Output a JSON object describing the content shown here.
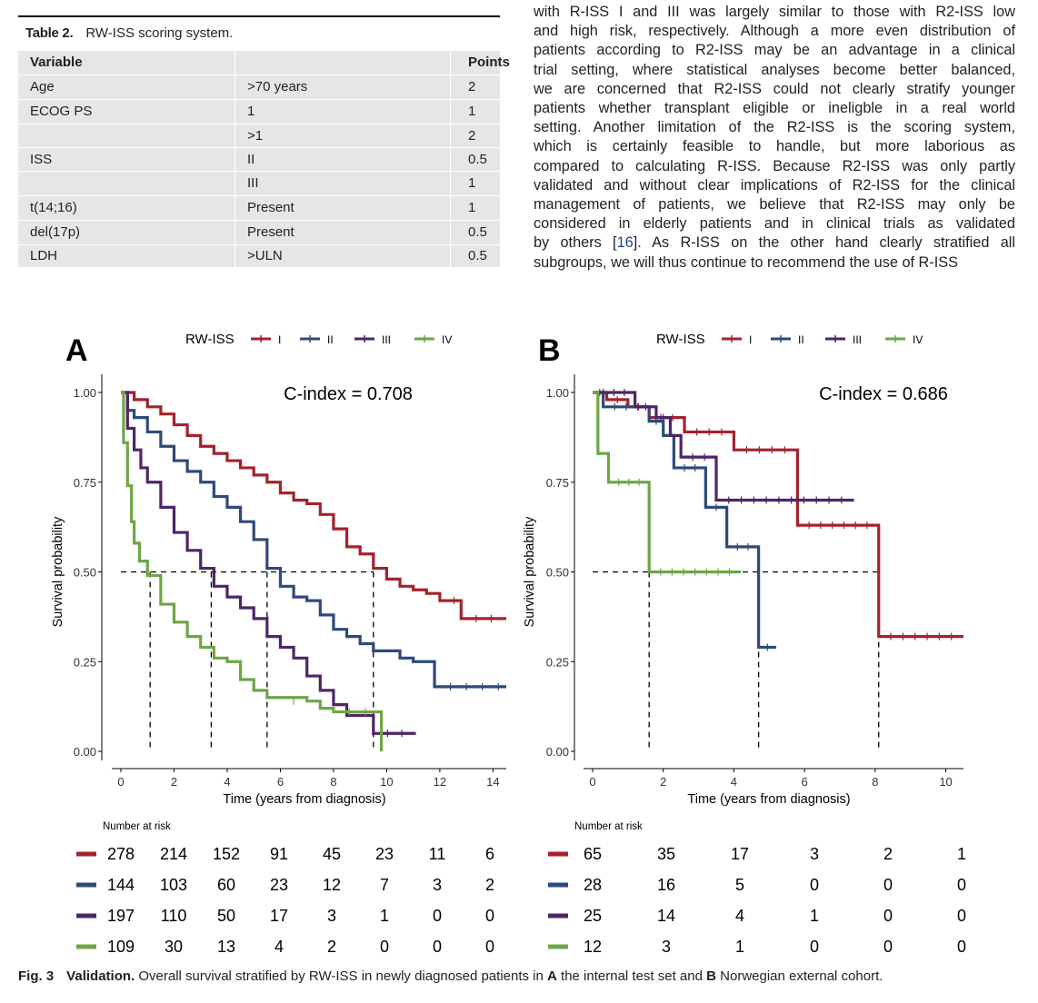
{
  "table": {
    "label": "Table 2.",
    "title": "RW-ISS scoring system.",
    "headers": [
      "Variable",
      "",
      "Points"
    ],
    "rows": [
      [
        "Age",
        ">70 years",
        "2"
      ],
      [
        "ECOG PS",
        "1",
        "1"
      ],
      [
        "",
        ">1",
        "2"
      ],
      [
        "ISS",
        "II",
        "0.5"
      ],
      [
        "",
        "III",
        "1"
      ],
      [
        "t(14;16)",
        "Present",
        "1"
      ],
      [
        "del(17p)",
        "Present",
        "0.5"
      ],
      [
        "LDH",
        ">ULN",
        "0.5"
      ]
    ]
  },
  "body_text": {
    "lines": [
      "with R-ISS I and III was largely similar to those with R2-ISS low",
      "and high risk, respectively. Although a more even distribution of",
      "patients according to R2-ISS may be an advantage in a clinical",
      "trial setting, where statistical analyses become better balanced,",
      "we are concerned that R2-ISS could not clearly stratify younger",
      "patients whether transplant eligible or ineligble in a real world",
      "setting. Another limitation of the R2-ISS is the scoring system,",
      "which is certainly feasible to handle, but more laborious as",
      "compared to calculating R-ISS. Because R2-ISS was only partly",
      "validated and without clear implications of R2-ISS for the clinical",
      "management of patients, we believe that R2-ISS may only be",
      "considered in elderly patients and in clinical trials as validated",
      "by others [16]. As R-ISS on the other hand clearly stratified all",
      "subgroups, we will thus continue to recommend the use of R-ISS"
    ],
    "ref_number": "16"
  },
  "colors": {
    "I": "#a3222e",
    "II": "#2e4a7a",
    "III": "#4e2566",
    "IV": "#6ea545"
  },
  "chart_data": [
    {
      "type": "line",
      "panel_label": "A",
      "annotation": "C-index = 0.708",
      "legend_title": "RW-ISS",
      "xlabel": "Time (years from diagnosis)",
      "ylabel": "Survival probability",
      "xlim": [
        0,
        14.5
      ],
      "ylim": [
        0,
        1
      ],
      "xticks": [
        0,
        2,
        4,
        6,
        8,
        10,
        12,
        14
      ],
      "yticks": [
        0,
        0.25,
        0.5,
        0.75,
        1
      ],
      "ytick_labels": [
        "0.00",
        "0.25",
        "0.50",
        "0.75",
        "1.00"
      ],
      "medians": [
        1.1,
        3.4,
        5.5,
        9.5
      ],
      "series": [
        {
          "name": "I",
          "points": [
            [
              0,
              1
            ],
            [
              0.5,
              0.98
            ],
            [
              1,
              0.96
            ],
            [
              1.5,
              0.94
            ],
            [
              2,
              0.91
            ],
            [
              2.5,
              0.88
            ],
            [
              3,
              0.85
            ],
            [
              3.5,
              0.83
            ],
            [
              4,
              0.81
            ],
            [
              4.5,
              0.79
            ],
            [
              5,
              0.77
            ],
            [
              5.5,
              0.75
            ],
            [
              6,
              0.72
            ],
            [
              6.5,
              0.7
            ],
            [
              7,
              0.69
            ],
            [
              7.5,
              0.66
            ],
            [
              8,
              0.62
            ],
            [
              8.5,
              0.57
            ],
            [
              9,
              0.55
            ],
            [
              9.5,
              0.51
            ],
            [
              10,
              0.48
            ],
            [
              10.5,
              0.46
            ],
            [
              11,
              0.45
            ],
            [
              11.5,
              0.44
            ],
            [
              12,
              0.42
            ],
            [
              12.8,
              0.42
            ],
            [
              12.8,
              0.37
            ],
            [
              14.5,
              0.37
            ]
          ]
        },
        {
          "name": "II",
          "points": [
            [
              0,
              1
            ],
            [
              0.25,
              0.95
            ],
            [
              0.5,
              0.93
            ],
            [
              1,
              0.89
            ],
            [
              1.5,
              0.85
            ],
            [
              2,
              0.81
            ],
            [
              2.5,
              0.78
            ],
            [
              3,
              0.75
            ],
            [
              3.5,
              0.71
            ],
            [
              4,
              0.68
            ],
            [
              4.5,
              0.64
            ],
            [
              5,
              0.59
            ],
            [
              5.5,
              0.51
            ],
            [
              6,
              0.46
            ],
            [
              6.5,
              0.43
            ],
            [
              7,
              0.42
            ],
            [
              7.5,
              0.38
            ],
            [
              8,
              0.34
            ],
            [
              8.5,
              0.32
            ],
            [
              9,
              0.3
            ],
            [
              9.5,
              0.28
            ],
            [
              10,
              0.28
            ],
            [
              10.5,
              0.26
            ],
            [
              11,
              0.25
            ],
            [
              11.5,
              0.25
            ],
            [
              11.8,
              0.22
            ],
            [
              11.8,
              0.18
            ],
            [
              14.5,
              0.18
            ]
          ]
        },
        {
          "name": "III",
          "points": [
            [
              0,
              1
            ],
            [
              0.25,
              0.9
            ],
            [
              0.5,
              0.84
            ],
            [
              0.75,
              0.79
            ],
            [
              1,
              0.75
            ],
            [
              1.5,
              0.68
            ],
            [
              2,
              0.61
            ],
            [
              2.5,
              0.56
            ],
            [
              3,
              0.51
            ],
            [
              3.5,
              0.46
            ],
            [
              4,
              0.43
            ],
            [
              4.5,
              0.4
            ],
            [
              5,
              0.37
            ],
            [
              5.5,
              0.32
            ],
            [
              6,
              0.29
            ],
            [
              6.5,
              0.26
            ],
            [
              7,
              0.21
            ],
            [
              7.5,
              0.17
            ],
            [
              8,
              0.13
            ],
            [
              8.5,
              0.1
            ],
            [
              9,
              0.1
            ],
            [
              9.5,
              0.05
            ],
            [
              11.1,
              0.05
            ]
          ]
        },
        {
          "name": "IV",
          "points": [
            [
              0,
              1
            ],
            [
              0.1,
              0.86
            ],
            [
              0.25,
              0.74
            ],
            [
              0.4,
              0.64
            ],
            [
              0.5,
              0.58
            ],
            [
              0.7,
              0.53
            ],
            [
              1,
              0.49
            ],
            [
              1.5,
              0.41
            ],
            [
              2,
              0.36
            ],
            [
              2.5,
              0.32
            ],
            [
              3,
              0.29
            ],
            [
              3.5,
              0.26
            ],
            [
              4,
              0.25
            ],
            [
              4.5,
              0.2
            ],
            [
              5,
              0.17
            ],
            [
              5.5,
              0.15
            ],
            [
              6,
              0.15
            ],
            [
              7,
              0.14
            ],
            [
              7.5,
              0.12
            ],
            [
              8,
              0.11
            ],
            [
              9.5,
              0.11
            ],
            [
              9.8,
              0.0
            ]
          ]
        }
      ],
      "risk_table": {
        "title": "Number at risk",
        "times": [
          0,
          2,
          4,
          6,
          8,
          10,
          12,
          14
        ],
        "rows": [
          {
            "name": "I",
            "values": [
              278,
              214,
              152,
              91,
              45,
              23,
              11,
              6
            ]
          },
          {
            "name": "II",
            "values": [
              144,
              103,
              60,
              23,
              12,
              7,
              3,
              2
            ]
          },
          {
            "name": "III",
            "values": [
              197,
              110,
              50,
              17,
              3,
              1,
              0,
              0
            ]
          },
          {
            "name": "IV",
            "values": [
              109,
              30,
              13,
              4,
              2,
              0,
              0,
              0
            ]
          }
        ]
      }
    },
    {
      "type": "line",
      "panel_label": "B",
      "annotation": "C-index = 0.686",
      "legend_title": "RW-ISS",
      "xlabel": "Time (years from diagnosis)",
      "ylabel": "Survival probability",
      "xlim": [
        0,
        10.5
      ],
      "ylim": [
        0,
        1
      ],
      "xticks": [
        0,
        2,
        4,
        6,
        8,
        10
      ],
      "yticks": [
        0,
        0.25,
        0.5,
        0.75,
        1
      ],
      "ytick_labels": [
        "0.00",
        "0.25",
        "0.50",
        "0.75",
        "1.00"
      ],
      "medians": [
        1.6,
        4.7,
        8.1
      ],
      "series": [
        {
          "name": "I",
          "points": [
            [
              0,
              1
            ],
            [
              0.4,
              1
            ],
            [
              0.4,
              0.98
            ],
            [
              1,
              0.98
            ],
            [
              1,
              0.96
            ],
            [
              1.6,
              0.96
            ],
            [
              1.6,
              0.93
            ],
            [
              2.6,
              0.93
            ],
            [
              2.6,
              0.89
            ],
            [
              4,
              0.89
            ],
            [
              4,
              0.84
            ],
            [
              5.8,
              0.84
            ],
            [
              5.8,
              0.63
            ],
            [
              8.1,
              0.63
            ],
            [
              8.1,
              0.32
            ],
            [
              10.5,
              0.32
            ]
          ]
        },
        {
          "name": "II",
          "points": [
            [
              0,
              1
            ],
            [
              0.3,
              1
            ],
            [
              0.3,
              0.96
            ],
            [
              1.6,
              0.96
            ],
            [
              1.6,
              0.92
            ],
            [
              2,
              0.92
            ],
            [
              2,
              0.88
            ],
            [
              2.3,
              0.88
            ],
            [
              2.3,
              0.79
            ],
            [
              3.2,
              0.79
            ],
            [
              3.2,
              0.68
            ],
            [
              3.8,
              0.68
            ],
            [
              3.8,
              0.57
            ],
            [
              4.7,
              0.57
            ],
            [
              4.7,
              0.29
            ],
            [
              5.2,
              0.29
            ]
          ]
        },
        {
          "name": "III",
          "points": [
            [
              0,
              1
            ],
            [
              1.2,
              1
            ],
            [
              1.2,
              0.96
            ],
            [
              1.8,
              0.96
            ],
            [
              1.8,
              0.93
            ],
            [
              2.2,
              0.93
            ],
            [
              2.2,
              0.88
            ],
            [
              2.5,
              0.88
            ],
            [
              2.5,
              0.82
            ],
            [
              3.5,
              0.82
            ],
            [
              3.5,
              0.7
            ],
            [
              7.4,
              0.7
            ]
          ]
        },
        {
          "name": "IV",
          "points": [
            [
              0,
              1
            ],
            [
              0.15,
              1
            ],
            [
              0.15,
              0.83
            ],
            [
              0.45,
              0.83
            ],
            [
              0.45,
              0.75
            ],
            [
              1.6,
              0.75
            ],
            [
              1.6,
              0.5
            ],
            [
              4.2,
              0.5
            ]
          ]
        }
      ],
      "risk_table": {
        "title": "Number at risk",
        "times": [
          0,
          2,
          4,
          6,
          8,
          10
        ],
        "rows": [
          {
            "name": "I",
            "values": [
              65,
              35,
              17,
              3,
              2,
              1
            ]
          },
          {
            "name": "II",
            "values": [
              28,
              16,
              5,
              0,
              0,
              0
            ]
          },
          {
            "name": "III",
            "values": [
              25,
              14,
              4,
              1,
              0,
              0
            ]
          },
          {
            "name": "IV",
            "values": [
              12,
              3,
              1,
              0,
              0,
              0
            ]
          }
        ]
      }
    }
  ],
  "figure_caption": {
    "label": "Fig. 3",
    "bold_lead": "Validation.",
    "text_1": "Overall survival stratified by RW-ISS in newly diagnosed patients in",
    "bold_a": "A",
    "text_2": "the internal test set and",
    "bold_b": "B",
    "text_3": "Norwegian external cohort."
  }
}
